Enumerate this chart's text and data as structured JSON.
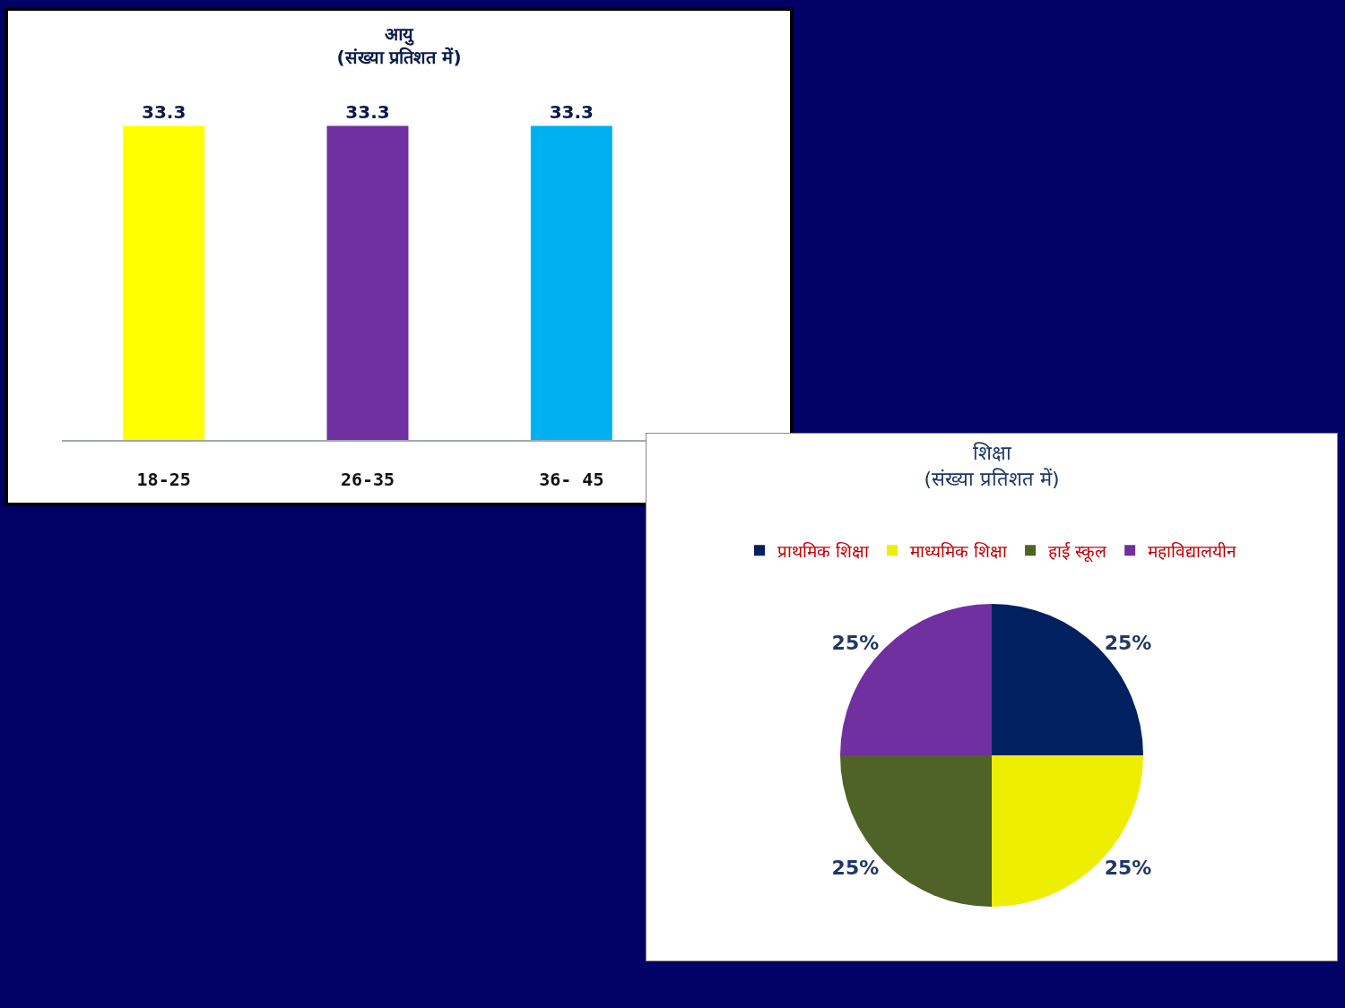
{
  "chart_data": [
    {
      "type": "bar",
      "title": "आयु\n(संख्या प्रतिशत में)",
      "categories": [
        "18-25",
        "26-35",
        "36- 45"
      ],
      "values": [
        33.3,
        33.3,
        33.3
      ],
      "colors": [
        "#ffff00",
        "#7030a0",
        "#00b0f0"
      ],
      "data_labels": true,
      "legend": false,
      "grid": false
    },
    {
      "type": "pie",
      "title": "शिक्षा\n(संख्या प्रतिशत में)",
      "categories": [
        "प्राथमिक शिक्षा",
        "माध्यमिक शिक्षा",
        "हाई स्कूल",
        "महाविद्यालयीन"
      ],
      "values": [
        25,
        25,
        25,
        25
      ],
      "colors": [
        "#002060",
        "#eeee00",
        "#4f6228",
        "#7030a0"
      ],
      "value_labels": [
        "25%",
        "25%",
        "25%",
        "25%"
      ],
      "legend": "top"
    }
  ]
}
